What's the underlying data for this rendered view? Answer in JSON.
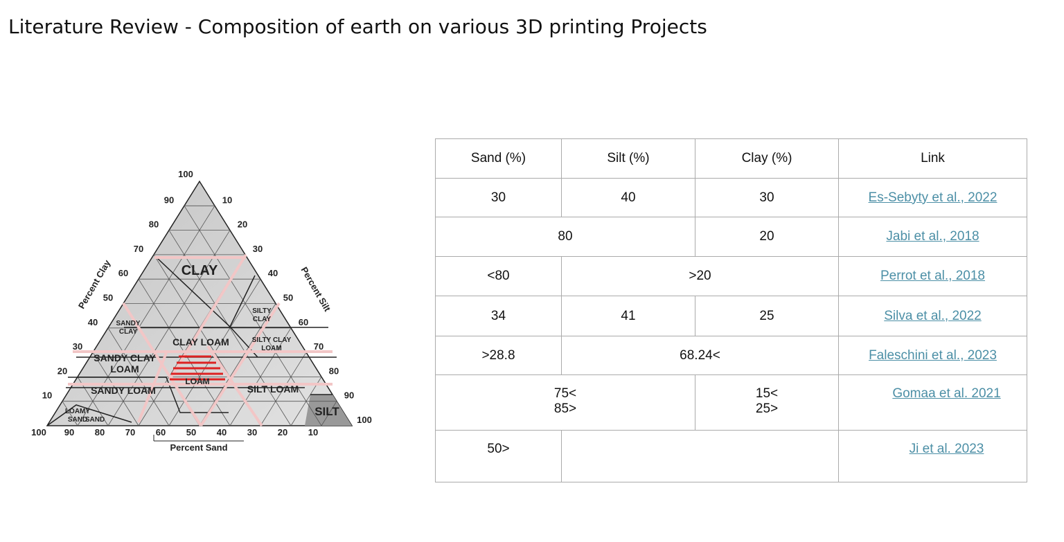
{
  "header": {
    "title": "Literature Review  - Composition of earth on various 3D printing Projects"
  },
  "diagram": {
    "clay_ticks": [
      "100",
      "90",
      "80",
      "70",
      "60",
      "50",
      "40",
      "30",
      "20",
      "10"
    ],
    "silt_ticks": [
      "10",
      "20",
      "30",
      "40",
      "50",
      "60",
      "70",
      "80",
      "90",
      "100"
    ],
    "sand_ticks": [
      "100",
      "90",
      "80",
      "70",
      "60",
      "50",
      "40",
      "30",
      "20",
      "10"
    ],
    "axis_titles": {
      "clay": "Percent Clay",
      "silt": "Percent Silt",
      "sand": "Percent Sand"
    },
    "regions": [
      [
        "CLAY"
      ],
      [
        "SILTY",
        "CLAY"
      ],
      [
        "SANDY",
        "CLAY"
      ],
      [
        "CLAY LOAM"
      ],
      [
        "SILTY CLAY",
        "LOAM"
      ],
      [
        "SANDY CLAY",
        "LOAM"
      ],
      [
        "LOAM"
      ],
      [
        "SANDY LOAM"
      ],
      [
        "SILT LOAM"
      ],
      [
        "SILT"
      ],
      [
        "LOAMY",
        "SAND"
      ],
      [
        "SAND"
      ]
    ]
  },
  "table": {
    "header": [
      "Sand (%)",
      "Silt  (%)",
      "Clay  (%)",
      "Link"
    ],
    "rows": [
      [
        "30",
        "40",
        "30",
        "Es-Sebyty et al., 2022"
      ],
      [
        "80",
        "20",
        "Jabi et al., 2018"
      ],
      [
        "<80",
        ">20",
        "Perrot et al., 2018"
      ],
      [
        "34",
        "41",
        "25",
        "Silva et al., 2022"
      ],
      [
        ">28.8",
        "68.24<",
        "Faleschini et al., 2023"
      ],
      [
        [
          "75<",
          "85>"
        ],
        [
          "15<",
          "25>"
        ],
        "Gomaa et al. 2021"
      ],
      [
        "50>",
        "Ji et al. 2023"
      ]
    ]
  }
}
